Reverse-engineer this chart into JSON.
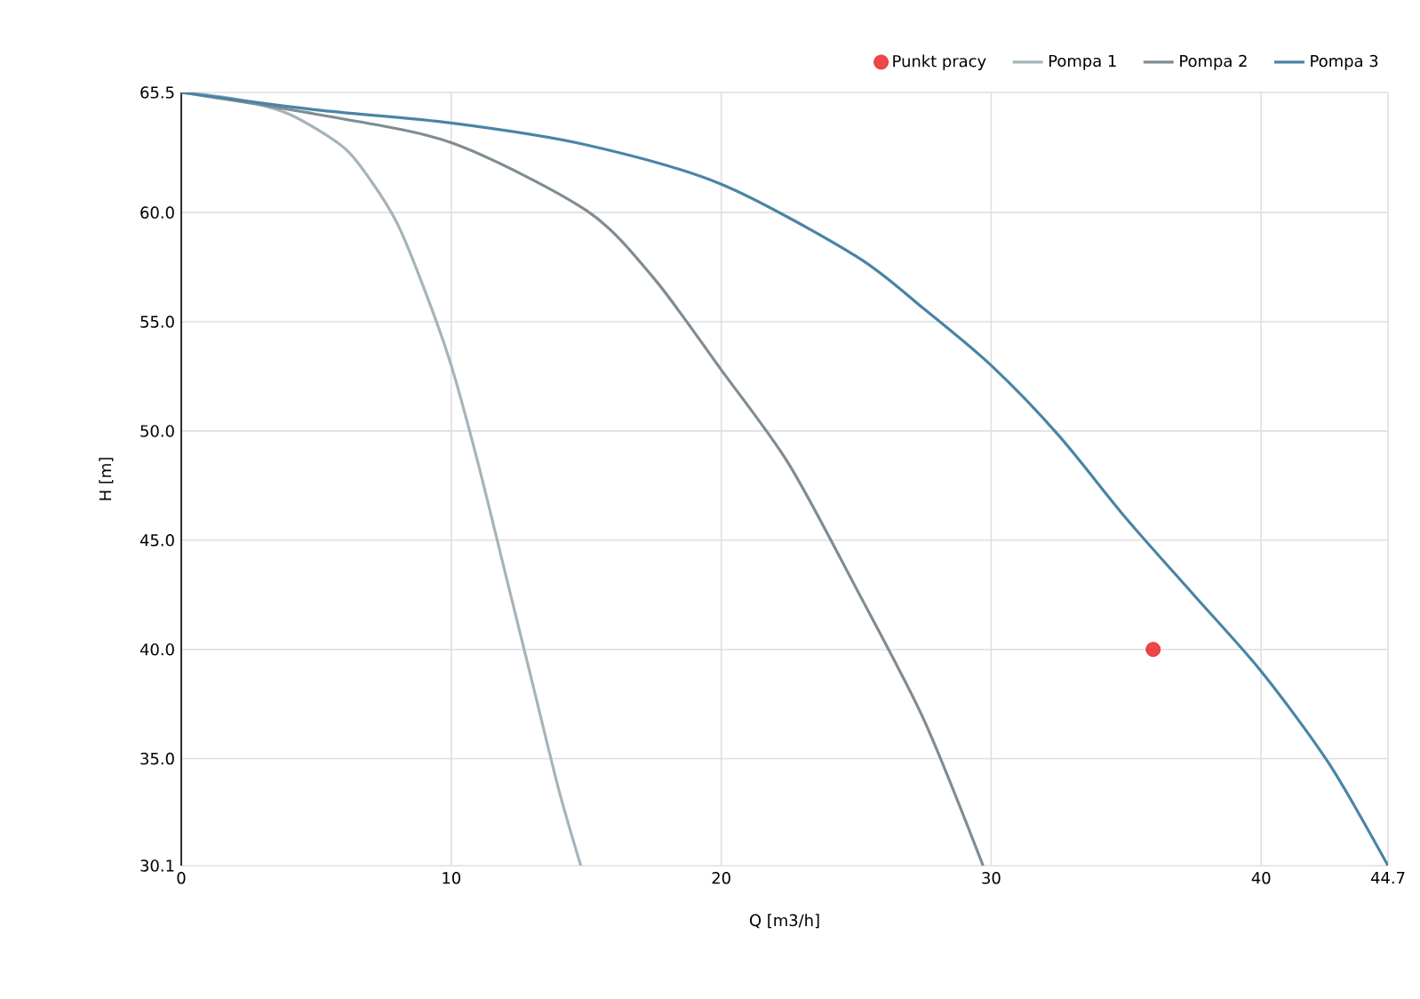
{
  "chart_data": {
    "type": "line",
    "xlabel": "Q [m3/h]",
    "ylabel": "H [m]",
    "xlim": [
      0,
      44.7
    ],
    "ylim": [
      30.1,
      65.5
    ],
    "xticks": [
      0,
      10,
      20,
      30,
      40,
      44.7
    ],
    "yticks": [
      30.1,
      {
        "value": 35,
        "label": "35.0"
      },
      {
        "value": 40,
        "label": "40.0"
      },
      {
        "value": 45,
        "label": "45.0"
      },
      {
        "value": 50,
        "label": "50.0"
      },
      {
        "value": 55,
        "label": "55.0"
      },
      {
        "value": 60,
        "label": "60.0"
      },
      65.5
    ],
    "grid": true,
    "legend": "top right",
    "series": [
      {
        "name": "Punkt pracy",
        "type": "scatter",
        "color": "#e8191c",
        "x": [
          36
        ],
        "values": [
          40
        ]
      },
      {
        "name": "Pompa 1",
        "color": "#a6b4ba",
        "x": [
          0,
          2,
          4,
          6,
          7,
          8,
          9,
          10,
          11,
          12,
          13,
          14,
          14.8
        ],
        "values": [
          65.5,
          65.2,
          64.5,
          63,
          61.5,
          59.5,
          56.5,
          53,
          48.5,
          43.5,
          38.5,
          33.5,
          30.1
        ]
      },
      {
        "name": "Pompa 2",
        "color": "#7f8c93",
        "x": [
          0,
          5,
          10,
          15,
          17.5,
          20,
          22.5,
          25,
          27.5,
          29.7
        ],
        "values": [
          65.5,
          64.5,
          63.2,
          60.1,
          57,
          52.8,
          48.5,
          42.8,
          36.8,
          30.1
        ]
      },
      {
        "name": "Pompa 3",
        "color": "#4a84a6",
        "x": [
          0,
          5,
          10,
          15,
          20,
          25,
          27.5,
          30,
          32.5,
          35,
          37.5,
          40,
          42.5,
          44.7
        ],
        "values": [
          65.5,
          64.7,
          64.1,
          63.1,
          61.3,
          58,
          55.6,
          53,
          49.8,
          46,
          42.5,
          39,
          34.8,
          30.1
        ]
      }
    ]
  }
}
